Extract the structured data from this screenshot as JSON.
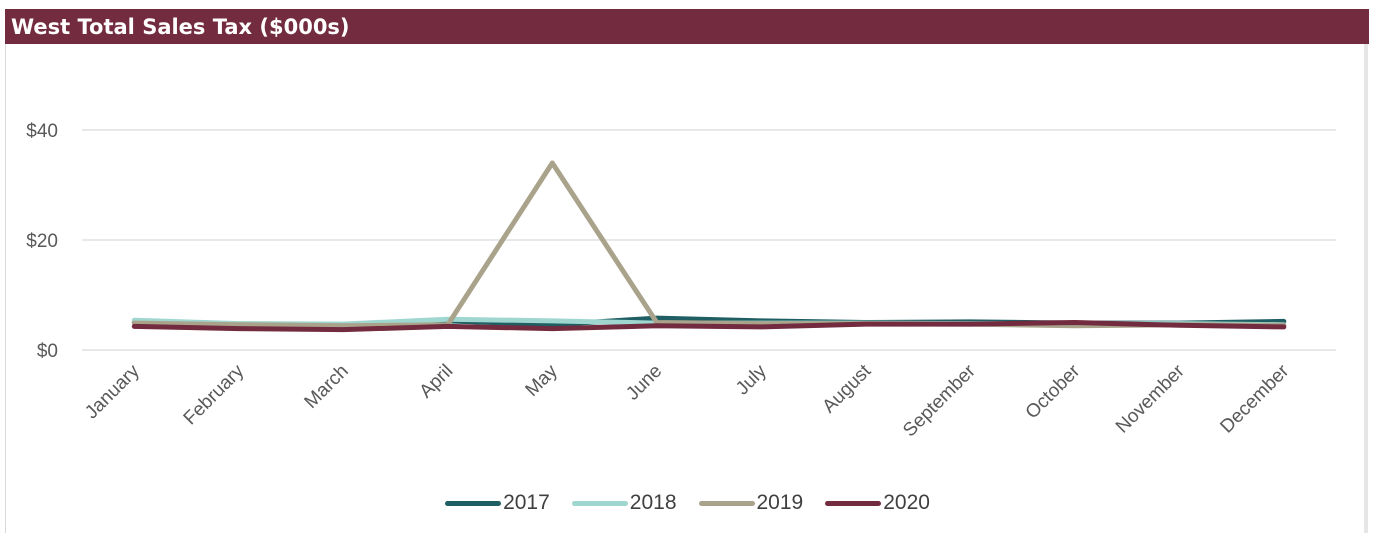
{
  "title": "West Total Sales Tax ($000s)",
  "colors": {
    "title_bar": "#722b3f",
    "grid": "#d9d9d9",
    "tick_text": "#595959"
  },
  "chart_data": {
    "type": "line",
    "title": "West Total Sales Tax ($000s)",
    "xlabel": "",
    "ylabel": "",
    "categories": [
      "January",
      "February",
      "March",
      "April",
      "May",
      "June",
      "July",
      "August",
      "September",
      "October",
      "November",
      "December"
    ],
    "y_ticks": [
      {
        "value": 0,
        "label": "$0"
      },
      {
        "value": 20,
        "label": "$20"
      },
      {
        "value": 40,
        "label": "$40"
      }
    ],
    "ylim": [
      0,
      48
    ],
    "grid": true,
    "legend_position": "bottom",
    "series": [
      {
        "name": "2017",
        "color": "#1f5f63",
        "values": [
          5.0,
          4.6,
          4.4,
          5.3,
          4.6,
          5.8,
          5.3,
          5.0,
          5.1,
          4.9,
          4.9,
          5.2
        ]
      },
      {
        "name": "2018",
        "color": "#9fd6cf",
        "values": [
          5.4,
          4.8,
          4.7,
          5.6,
          5.3,
          4.9,
          4.9,
          4.9,
          4.8,
          4.8,
          4.8,
          4.6
        ]
      },
      {
        "name": "2019",
        "color": "#aaa38c",
        "values": [
          4.9,
          4.6,
          4.4,
          4.6,
          34.0,
          5.0,
          4.8,
          4.8,
          4.7,
          4.4,
          4.6,
          4.5
        ]
      },
      {
        "name": "2020",
        "color": "#722b3f",
        "values": [
          4.3,
          3.9,
          3.7,
          4.3,
          3.9,
          4.4,
          4.2,
          4.7,
          4.7,
          5.0,
          4.5,
          4.2
        ]
      }
    ]
  }
}
